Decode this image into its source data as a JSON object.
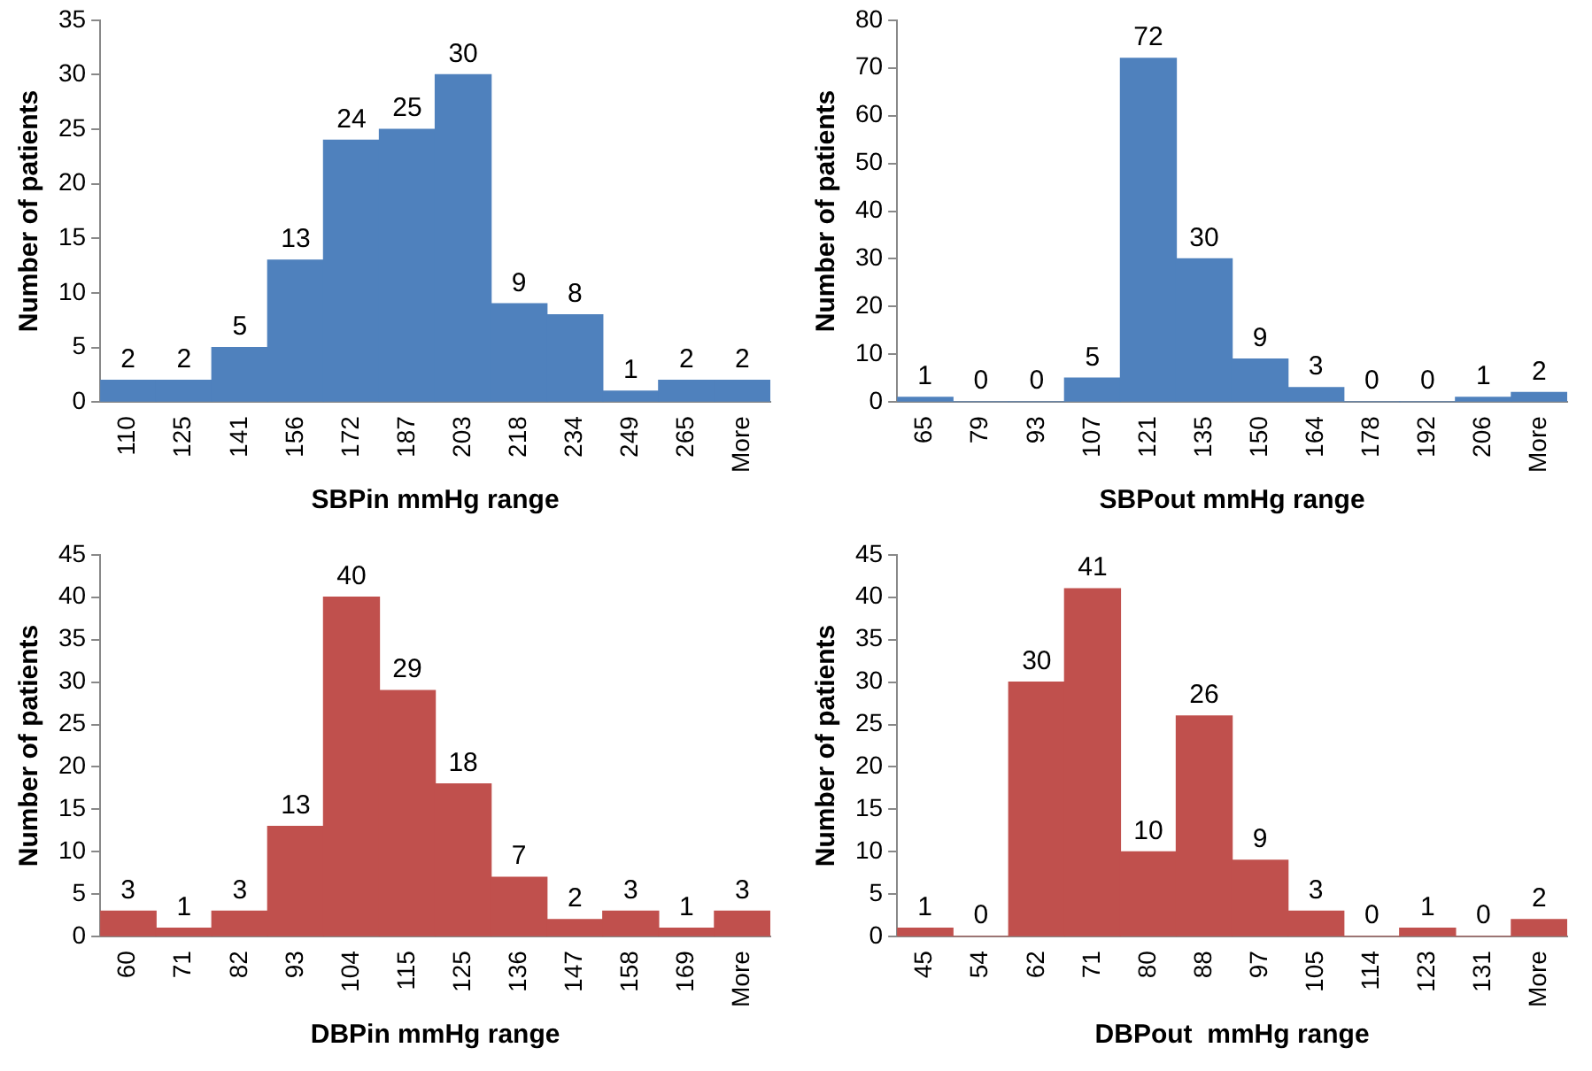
{
  "chart_data": [
    {
      "type": "bar",
      "categories": [
        "110",
        "125",
        "141",
        "156",
        "172",
        "187",
        "203",
        "218",
        "234",
        "249",
        "265",
        "More"
      ],
      "values": [
        2,
        2,
        5,
        13,
        24,
        25,
        30,
        9,
        8,
        1,
        2,
        2
      ],
      "color": "#4f81bd",
      "xlabel": "SBPin mmHg range",
      "ylabel": "Number of patients",
      "ylim": [
        0,
        35
      ],
      "yticks": [
        0,
        5,
        10,
        15,
        20,
        25,
        30,
        35
      ],
      "data_labels": true
    },
    {
      "type": "bar",
      "categories": [
        "65",
        "79",
        "93",
        "107",
        "121",
        "135",
        "150",
        "164",
        "178",
        "192",
        "206",
        "More"
      ],
      "values": [
        1,
        0,
        0,
        5,
        72,
        30,
        9,
        3,
        0,
        0,
        1,
        2
      ],
      "color": "#4f81bd",
      "xlabel": "SBPout mmHg range",
      "ylabel": "Number of patients",
      "ylim": [
        0,
        80
      ],
      "yticks": [
        0,
        10,
        20,
        30,
        40,
        50,
        60,
        70,
        80
      ],
      "data_labels": true
    },
    {
      "type": "bar",
      "categories": [
        "60",
        "71",
        "82",
        "93",
        "104",
        "115",
        "125",
        "136",
        "147",
        "158",
        "169",
        "More"
      ],
      "values": [
        3,
        1,
        3,
        13,
        40,
        29,
        18,
        7,
        2,
        3,
        1,
        3
      ],
      "color": "#c0504d",
      "xlabel": "DBPin mmHg range",
      "ylabel": "Number of patients",
      "ylim": [
        0,
        45
      ],
      "yticks": [
        0,
        5,
        10,
        15,
        20,
        25,
        30,
        35,
        40,
        45
      ],
      "data_labels": true
    },
    {
      "type": "bar",
      "categories": [
        "45",
        "54",
        "62",
        "71",
        "80",
        "88",
        "97",
        "105",
        "114",
        "123",
        "131",
        "More"
      ],
      "values": [
        1,
        0,
        30,
        41,
        10,
        26,
        9,
        3,
        0,
        1,
        0,
        2
      ],
      "color": "#c0504d",
      "xlabel": "DBPout  mmHg range",
      "ylabel": "Number of patients",
      "ylim": [
        0,
        45
      ],
      "yticks": [
        0,
        5,
        10,
        15,
        20,
        25,
        30,
        35,
        40,
        45
      ],
      "data_labels": true
    }
  ]
}
